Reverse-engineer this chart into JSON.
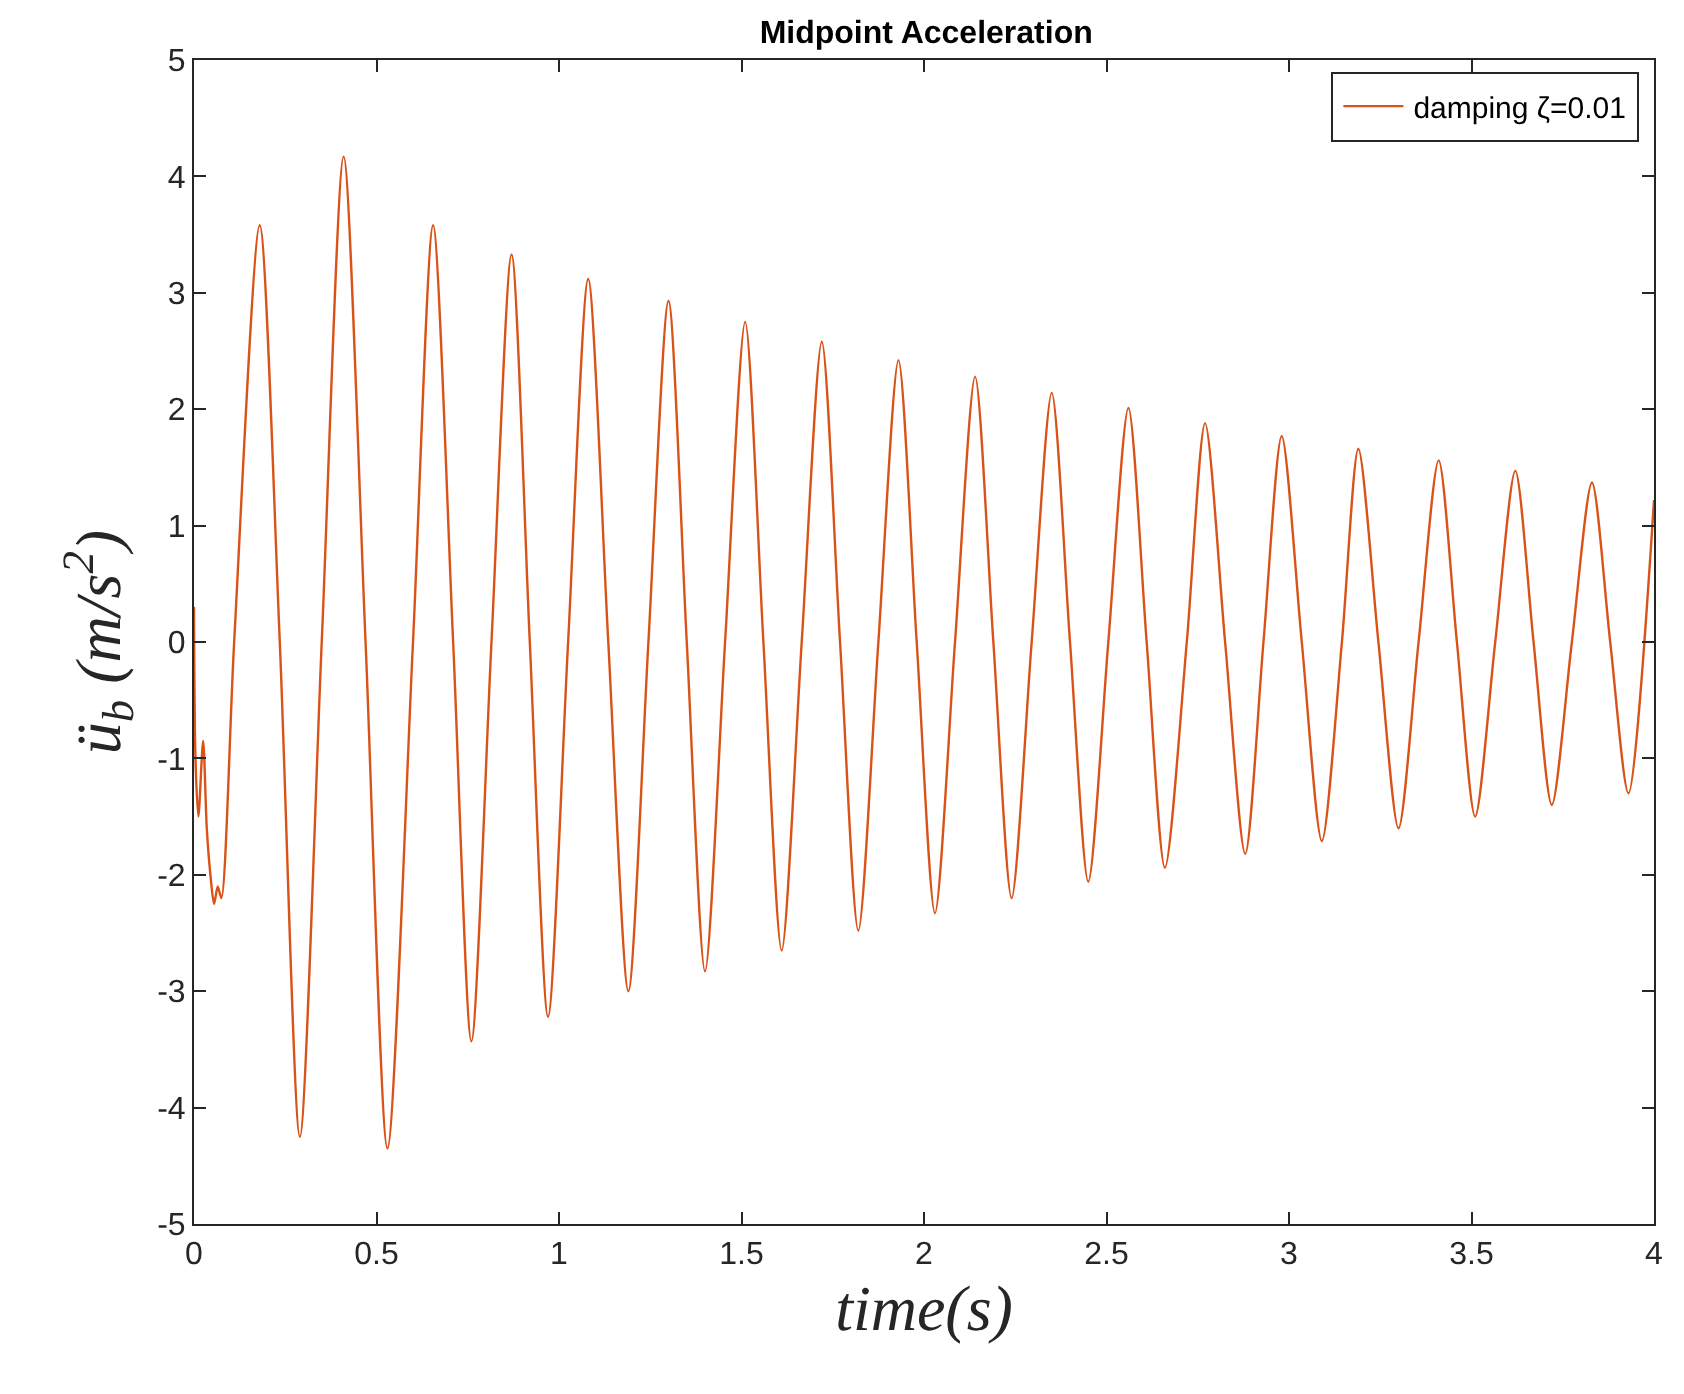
{
  "chart_data": {
    "type": "line",
    "title": "Midpoint Acceleration",
    "xlabel": "time(s)",
    "ylabel": "ü$_{b}$ (m/s$^{2}$)",
    "x": [
      0,
      0.004,
      0.012,
      0.025,
      0.035,
      0.045,
      0.055,
      0.065,
      0.075,
      0.11,
      0.18,
      0.235,
      0.29,
      0.35,
      0.41,
      0.47,
      0.53,
      0.6,
      0.655,
      0.71,
      0.76,
      0.815,
      0.87,
      0.92,
      0.97,
      1.025,
      1.08,
      1.135,
      1.19,
      1.245,
      1.3,
      1.35,
      1.4,
      1.455,
      1.51,
      1.56,
      1.61,
      1.665,
      1.72,
      1.77,
      1.82,
      1.875,
      1.93,
      1.98,
      2.03,
      2.085,
      2.14,
      2.19,
      2.24,
      2.295,
      2.35,
      2.4,
      2.45,
      2.505,
      2.56,
      2.61,
      2.66,
      2.72,
      2.77,
      2.825,
      2.88,
      2.93,
      2.98,
      3.035,
      3.09,
      3.145,
      3.19,
      3.245,
      3.3,
      3.355,
      3.41,
      3.46,
      3.51,
      3.565,
      3.62,
      3.67,
      3.72,
      3.775,
      3.83,
      3.88,
      3.93,
      4.0
    ],
    "series": [
      {
        "name": "damping ζ=0.01",
        "color": "#d95319",
        "values": [
          0.3,
          -1.0,
          -1.5,
          -0.85,
          -1.6,
          -2.0,
          -2.25,
          -2.1,
          -2.2,
          0,
          3.58,
          0,
          -4.25,
          0,
          4.17,
          0,
          -4.35,
          0,
          3.58,
          0,
          -3.43,
          0,
          3.33,
          0,
          -3.22,
          0,
          3.12,
          0,
          -3.0,
          0,
          2.93,
          0,
          -2.83,
          0,
          2.75,
          0,
          -2.65,
          0,
          2.58,
          0,
          -2.48,
          0,
          2.42,
          0,
          -2.33,
          0,
          2.28,
          0,
          -2.2,
          0,
          2.14,
          0,
          -2.06,
          0,
          2.01,
          0,
          -1.94,
          0,
          1.88,
          0,
          -1.82,
          0,
          1.77,
          0,
          -1.71,
          0,
          1.66,
          0,
          -1.6,
          0,
          1.56,
          0,
          -1.5,
          0,
          1.47,
          0,
          -1.4,
          0,
          1.37,
          0,
          -1.3,
          1.22
        ]
      }
    ],
    "xlim": [
      0,
      4
    ],
    "xticks": [
      0,
      0.5,
      1,
      1.5,
      2,
      2.5,
      3,
      3.5,
      4
    ],
    "ylim": [
      -5,
      5
    ],
    "yticks": [
      -5,
      -4,
      -3,
      -2,
      -1,
      0,
      1,
      2,
      3,
      4,
      5
    ],
    "grid": false,
    "legend": "top right",
    "marker": "none",
    "line_style": "solid"
  }
}
